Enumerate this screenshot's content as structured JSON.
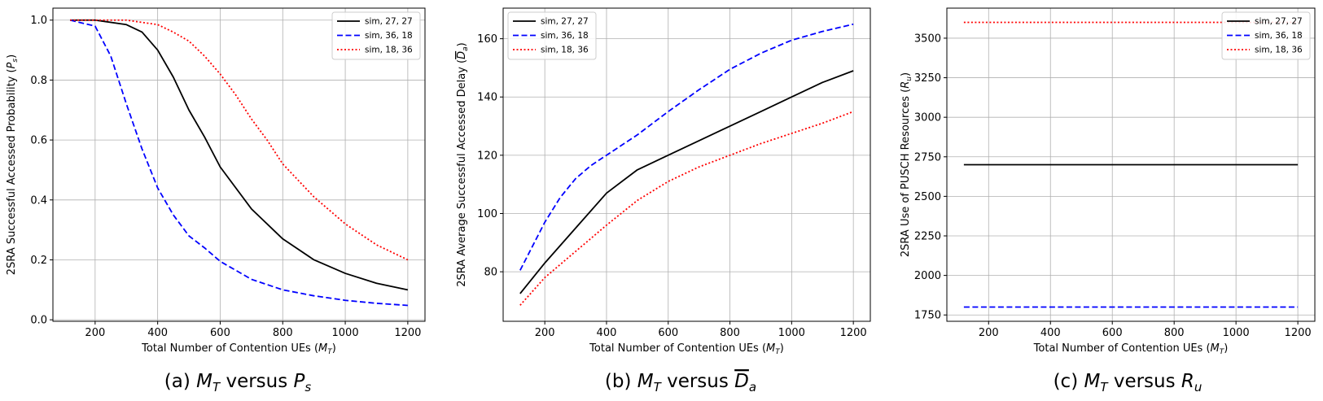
{
  "series_styles": [
    {
      "color": "#000000",
      "dash": "solid"
    },
    {
      "color": "#0000ff",
      "dash": "dashed"
    },
    {
      "color": "#ff0000",
      "dash": "dotted"
    }
  ],
  "chart_data": [
    {
      "type": "line",
      "caption_parts": {
        "prefix": "(a) ",
        "x": "M",
        "x_sub": "T",
        "mid": " versus ",
        "y": "P",
        "y_sub": "s"
      },
      "xlabel": "Total Number of Contention UEs (M_T)",
      "xlabel_parts": {
        "pre": "Total Number of Contention UEs (",
        "var": "M",
        "sub": "T",
        "post": ")"
      },
      "ylabel": "2SRA Successful Accessed Probability (P_s)",
      "ylabel_parts": {
        "pre": "2SRA Successful Accessed Probability (",
        "var": "P",
        "sub": "s",
        "post": ")"
      },
      "xlim": [
        65,
        1255
      ],
      "ylim": [
        -0.005,
        1.04
      ],
      "xticks": [
        200,
        400,
        600,
        800,
        1000,
        1200
      ],
      "yticks": [
        0.0,
        0.2,
        0.4,
        0.6,
        0.8,
        1.0
      ],
      "ytick_labels": [
        "0.0",
        "0.2",
        "0.4",
        "0.6",
        "0.8",
        "1.0"
      ],
      "grid": true,
      "legend_position": "top-right",
      "series": [
        {
          "name": "sim, 27, 27",
          "x": [
            120,
            200,
            300,
            350,
            400,
            450,
            500,
            550,
            600,
            700,
            800,
            900,
            1000,
            1100,
            1200
          ],
          "y": [
            1.0,
            1.0,
            0.985,
            0.96,
            0.9,
            0.81,
            0.7,
            0.61,
            0.51,
            0.37,
            0.27,
            0.2,
            0.155,
            0.122,
            0.1
          ]
        },
        {
          "name": "sim, 36, 18",
          "x": [
            120,
            200,
            250,
            300,
            350,
            400,
            450,
            500,
            550,
            600,
            700,
            800,
            900,
            1000,
            1100,
            1200
          ],
          "y": [
            1.0,
            0.98,
            0.88,
            0.72,
            0.57,
            0.44,
            0.35,
            0.28,
            0.24,
            0.195,
            0.135,
            0.1,
            0.08,
            0.065,
            0.055,
            0.048
          ]
        },
        {
          "name": "sim, 18, 36",
          "x": [
            120,
            300,
            400,
            450,
            500,
            550,
            600,
            650,
            700,
            750,
            800,
            900,
            1000,
            1100,
            1200
          ],
          "y": [
            1.0,
            1.0,
            0.985,
            0.96,
            0.93,
            0.88,
            0.82,
            0.75,
            0.67,
            0.6,
            0.52,
            0.41,
            0.32,
            0.25,
            0.2
          ]
        }
      ]
    },
    {
      "type": "line",
      "caption_parts": {
        "prefix": "(b) ",
        "x": "M",
        "x_sub": "T",
        "mid": " versus ",
        "y": "D",
        "y_sub": "a",
        "y_overline": true
      },
      "xlabel": "Total Number of Contention UEs (M_T)",
      "xlabel_parts": {
        "pre": "Total Number of Contention UEs (",
        "var": "M",
        "sub": "T",
        "post": ")"
      },
      "ylabel": "2SRA Average Successful Accessed Delay (D_a)",
      "ylabel_parts": {
        "pre": "2SRA Average Successful Accessed Delay (",
        "var": "D",
        "sub": "a",
        "post": ")",
        "overline": true
      },
      "xlim": [
        65,
        1255
      ],
      "ylim": [
        63,
        170.5
      ],
      "xticks": [
        200,
        400,
        600,
        800,
        1000,
        1200
      ],
      "yticks": [
        80,
        100,
        120,
        140,
        160
      ],
      "ytick_labels": [
        "80",
        "100",
        "120",
        "140",
        "160"
      ],
      "grid": true,
      "legend_position": "top-left",
      "series": [
        {
          "name": "sim, 27, 27",
          "x": [
            120,
            200,
            300,
            400,
            500,
            600,
            700,
            800,
            900,
            1000,
            1100,
            1200
          ],
          "y": [
            72.5,
            83,
            95,
            107,
            115,
            120,
            125,
            130,
            135,
            140,
            145,
            149
          ]
        },
        {
          "name": "sim, 36, 18",
          "x": [
            120,
            200,
            250,
            300,
            350,
            400,
            500,
            600,
            700,
            800,
            900,
            1000,
            1100,
            1200
          ],
          "y": [
            80.5,
            97,
            105.5,
            112,
            116.5,
            120,
            127,
            135,
            142.5,
            149.5,
            155,
            159.5,
            162.5,
            165
          ]
        },
        {
          "name": "sim, 18, 36",
          "x": [
            120,
            200,
            300,
            400,
            500,
            600,
            700,
            800,
            900,
            1000,
            1100,
            1200
          ],
          "y": [
            68.5,
            78,
            87,
            96,
            104.5,
            111,
            116,
            120,
            124,
            127.5,
            131,
            135
          ]
        }
      ]
    },
    {
      "type": "line",
      "caption_parts": {
        "prefix": "(c) ",
        "x": "M",
        "x_sub": "T",
        "mid": " versus ",
        "y": "R",
        "y_sub": "u"
      },
      "xlabel": "Total Number of Contention UEs (M_T)",
      "xlabel_parts": {
        "pre": "Total Number of Contention UEs (",
        "var": "M",
        "sub": "T",
        "post": ")"
      },
      "ylabel": "2SRA Use of PUSCH Resources (R_u)",
      "ylabel_parts": {
        "pre": "2SRA Use of PUSCH Resources (",
        "var": "R",
        "sub": "u",
        "post": ")"
      },
      "xlim": [
        65,
        1255
      ],
      "ylim": [
        1710,
        3690
      ],
      "xticks": [
        200,
        400,
        600,
        800,
        1000,
        1200
      ],
      "yticks": [
        1750,
        2000,
        2250,
        2500,
        2750,
        3000,
        3250,
        3500
      ],
      "ytick_labels": [
        "1750",
        "2000",
        "2250",
        "2500",
        "2750",
        "3000",
        "3250",
        "3500"
      ],
      "grid": true,
      "legend_position": "top-right",
      "series": [
        {
          "name": "sim, 27, 27",
          "x": [
            120,
            1200
          ],
          "y": [
            2700,
            2700
          ]
        },
        {
          "name": "sim, 36, 18",
          "x": [
            120,
            1200
          ],
          "y": [
            1800,
            1800
          ]
        },
        {
          "name": "sim, 18, 36",
          "x": [
            120,
            1200
          ],
          "y": [
            3600,
            3600
          ]
        }
      ]
    }
  ]
}
